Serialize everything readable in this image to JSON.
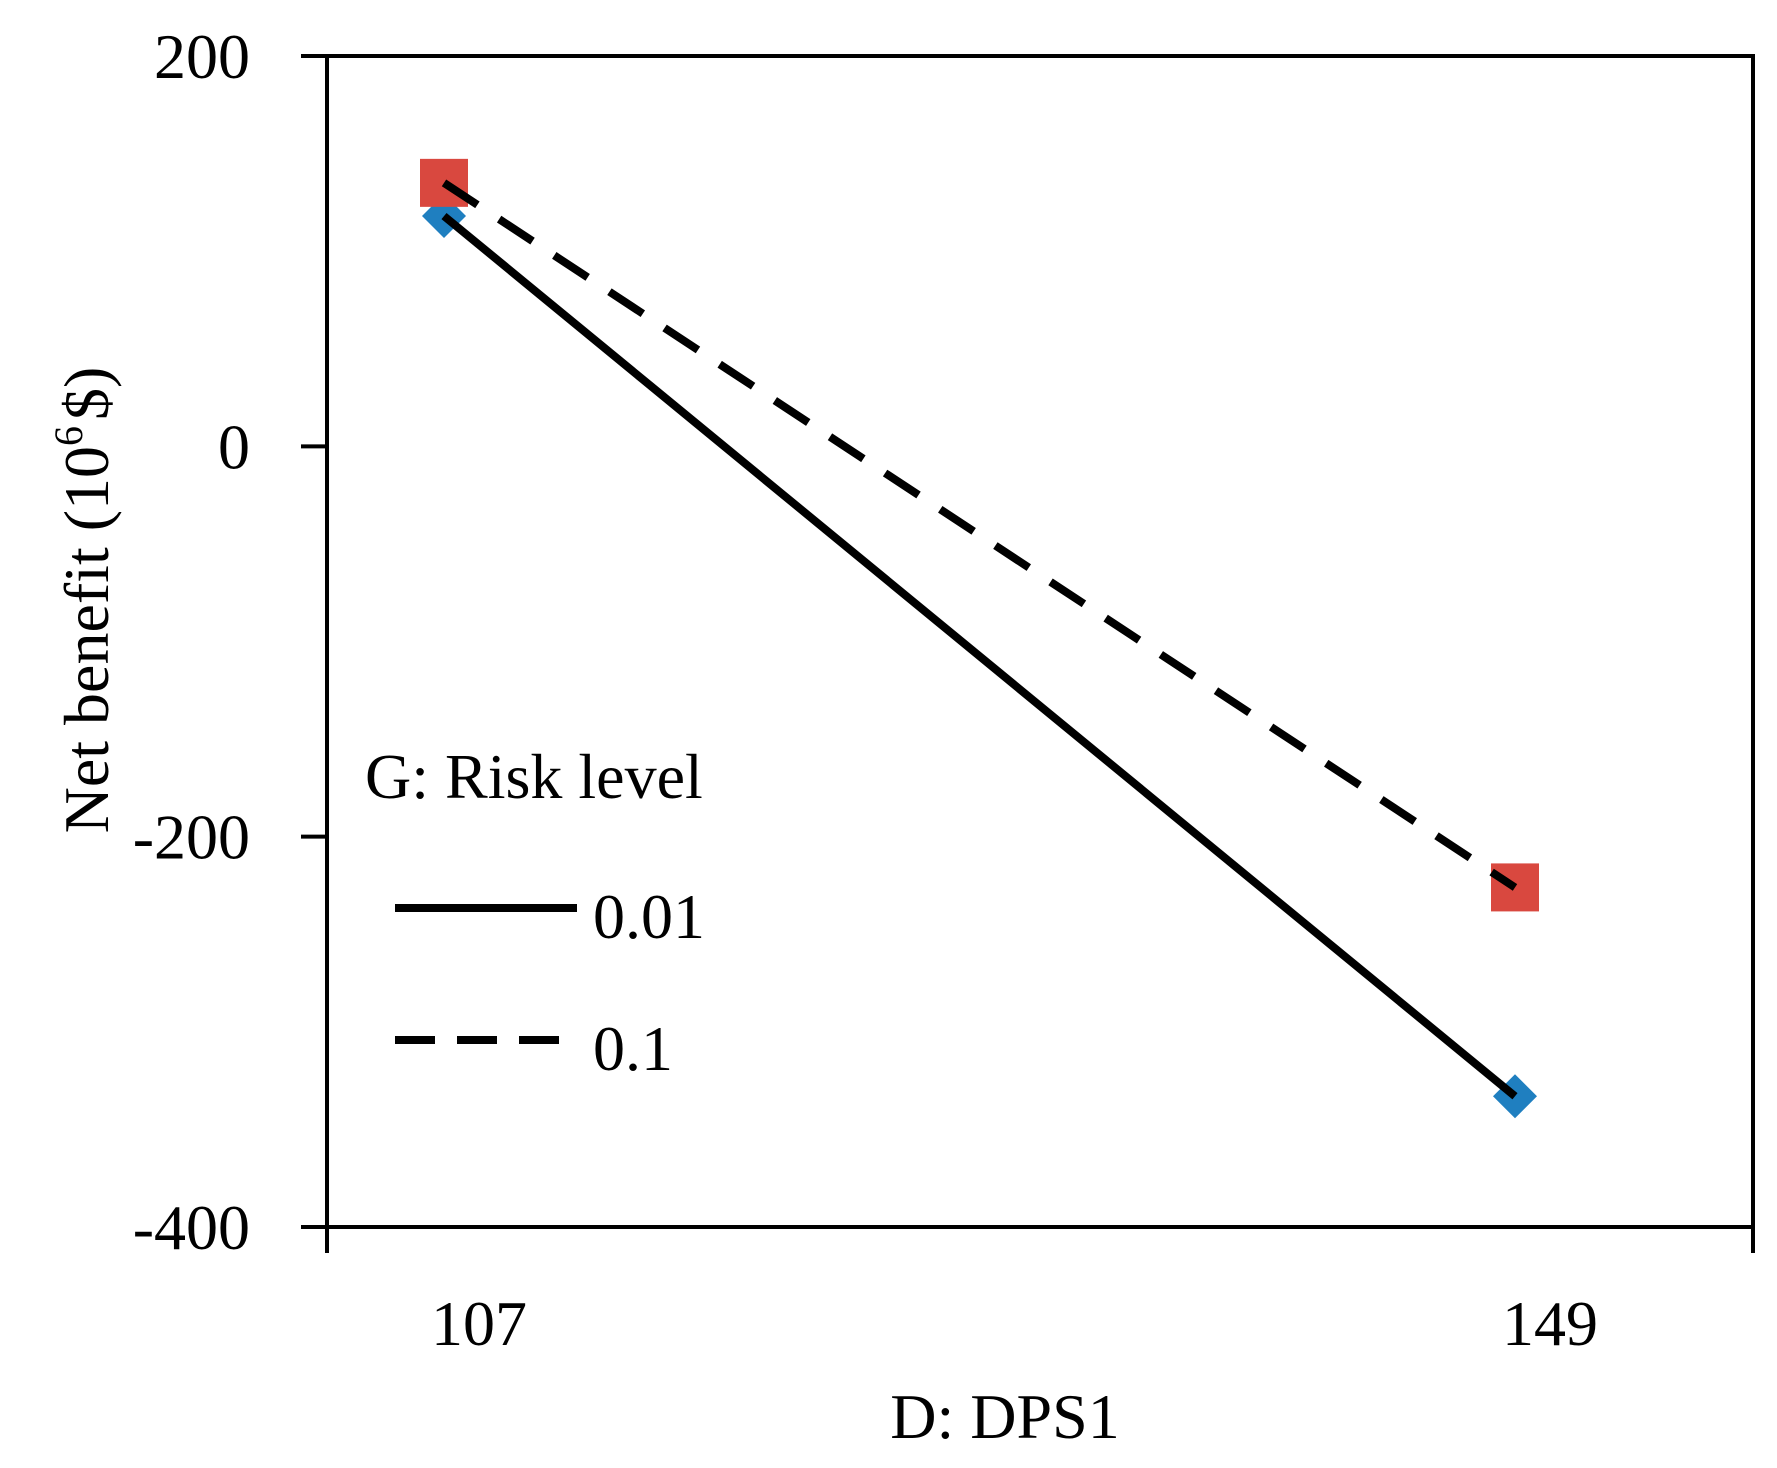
{
  "chart_data": {
    "type": "line",
    "title": "",
    "xlabel": "D: DPS1",
    "ylabel": "Net benefit (10",
    "ylabel_superscript": "6",
    "ylabel_suffix": "$)",
    "categories": [
      "107",
      "149"
    ],
    "ylim": [
      -400,
      200
    ],
    "yticks": [
      -400,
      -200,
      0,
      200
    ],
    "ytick_labels": [
      "-400",
      "-200",
      "0",
      "200"
    ],
    "grid": false,
    "legend": {
      "title": "G: Risk level",
      "placement": "middle-left"
    },
    "series": [
      {
        "name": "0.01",
        "values": [
          118,
          -333
        ],
        "line_style": "solid",
        "marker": "diamond",
        "marker_color": "#1f7fc0",
        "line_color": "#000000"
      },
      {
        "name": "0.1",
        "values": [
          135,
          -226
        ],
        "line_style": "dashed",
        "marker": "square",
        "marker_color": "#d9483f",
        "line_color": "#000000"
      }
    ]
  }
}
